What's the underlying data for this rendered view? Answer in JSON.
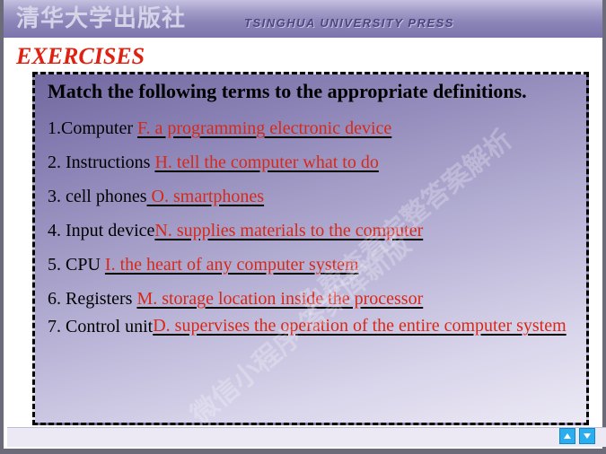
{
  "header": {
    "cn": "清华大学出版社",
    "en": "TSINGHUA UNIVERSITY PRESS"
  },
  "title": "EXERCISES",
  "prompt": "Match the following terms to the appropriate definitions.",
  "items": [
    {
      "n": "1.",
      "term": "Computer ",
      "ans": "F. a programming electronic device"
    },
    {
      "n": "2. ",
      "term": "Instructions ",
      "ans": "H. tell the computer what to do"
    },
    {
      "n": "3. ",
      "term": "cell phones",
      "ans": " O. smartphones"
    },
    {
      "n": "4.  ",
      "term": "Input device",
      "ans": "N. supplies materials to the computer"
    },
    {
      "n": "5. ",
      "term": "CPU ",
      "ans": "I. the heart of any computer system"
    },
    {
      "n": "6. ",
      "term": "Registers ",
      "ans": "M. storage location inside the processor"
    },
    {
      "n": "7. ",
      "term": "Control unit",
      "ans": "D. supervises the operation of the entire computer system"
    }
  ],
  "watermarks": {
    "w1": "免费查看完整答案解析",
    "w2": "微信小程序 答案库新版"
  },
  "colors": {
    "title_color": "#e02010",
    "answer_color": "#d82818",
    "nav_bg": "#2aaef0"
  }
}
